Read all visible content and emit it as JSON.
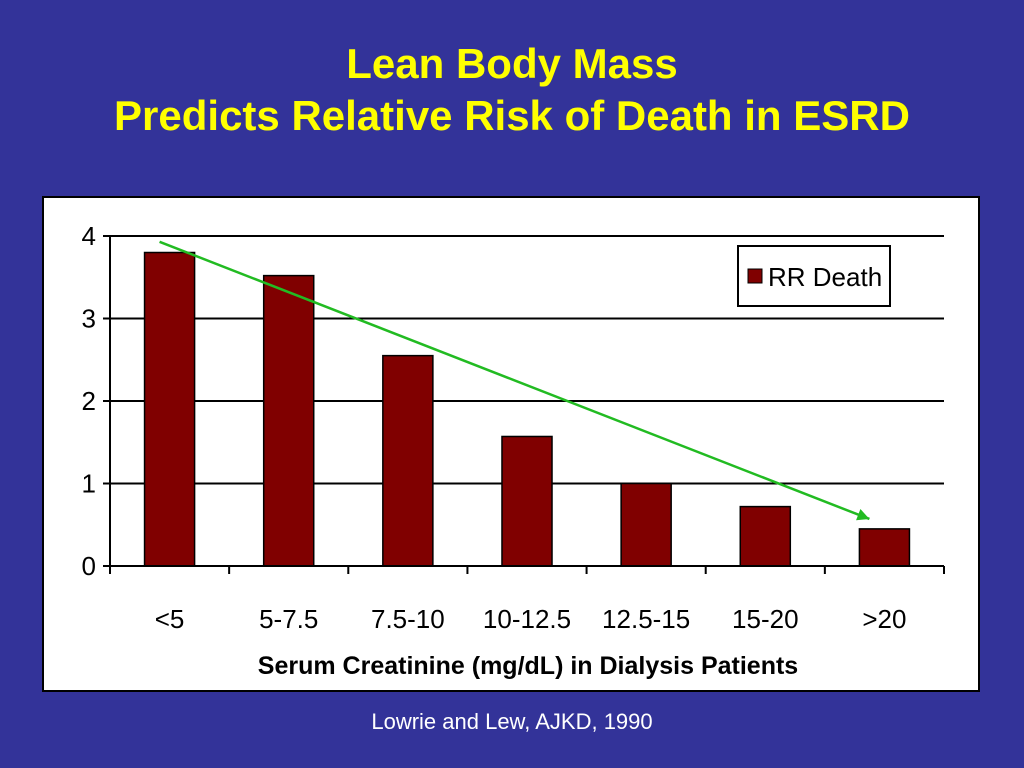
{
  "slide": {
    "title_line1": "Lean Body Mass",
    "title_line2": "Predicts Relative Risk of Death in ESRD",
    "citation": "Lowrie and Lew, AJKD, 1990",
    "background_color": "#333399",
    "title_color": "#FFFF00"
  },
  "chart_data": {
    "type": "bar",
    "categories": [
      "<5",
      "5-7.5",
      "7.5-10",
      "10-12.5",
      "12.5-15",
      "15-20",
      ">20"
    ],
    "series": [
      {
        "name": "RR Death",
        "values": [
          3.8,
          3.52,
          2.55,
          1.57,
          1.0,
          0.72,
          0.45
        ],
        "color": "#800000"
      }
    ],
    "xlabel": "Serum Creatinine (mg/dL) in Dialysis Patients",
    "ylabel": "",
    "ylim": [
      0,
      4
    ],
    "yticks": [
      0,
      1,
      2,
      3,
      4
    ],
    "grid": true,
    "legend_position": "top-right",
    "trend_arrow": {
      "color": "#22BB22",
      "direction": "decreasing",
      "from": {
        "x": "<5",
        "y": 3.93
      },
      "to": {
        "x": ">20",
        "y": 0.57
      }
    }
  }
}
